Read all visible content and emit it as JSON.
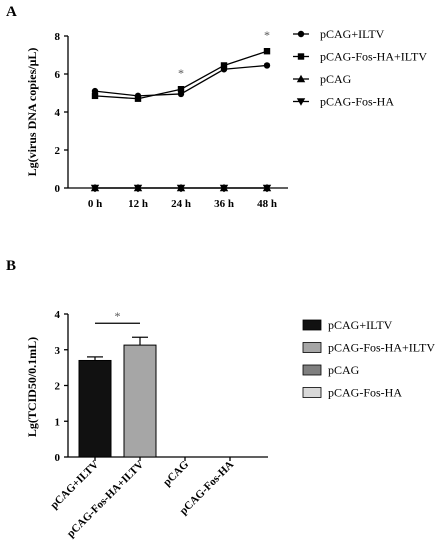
{
  "panels": {
    "a": "A",
    "b": "B"
  },
  "chart_data": [
    {
      "type": "line",
      "ylabel": "Lg(virus DNA copies/μL)",
      "xlabel": "",
      "categories": [
        "0 h",
        "12 h",
        "24 h",
        "36 h",
        "48 h"
      ],
      "ylim": [
        0,
        8
      ],
      "yticks": [
        "0",
        "2",
        "4",
        "6",
        "8"
      ],
      "series": [
        {
          "name": "pCAG+ILTV",
          "marker": "circle",
          "values": [
            5.1,
            4.85,
            4.95,
            6.25,
            6.45
          ]
        },
        {
          "name": "pCAG-Fos-HA+ILTV",
          "marker": "square",
          "values": [
            4.85,
            4.7,
            5.2,
            6.45,
            7.2
          ]
        },
        {
          "name": "pCAG",
          "marker": "triangle-up",
          "values": [
            0,
            0,
            0,
            0,
            0
          ]
        },
        {
          "name": "pCAG-Fos-HA",
          "marker": "triangle-down",
          "values": [
            0,
            0,
            0,
            0,
            0
          ]
        }
      ],
      "annotations": [
        {
          "text": "*",
          "category": "24 h"
        },
        {
          "text": "*",
          "category": "48 h"
        }
      ],
      "legend": "right",
      "grid": false
    },
    {
      "type": "bar",
      "ylabel": "Lg(TCID50/0.1mL)",
      "xlabel": "",
      "categories": [
        "pCAG+ILTV",
        "pCAG-Fos-HA+ILTV",
        "pCAG",
        "pCAG-Fos-HA"
      ],
      "values": [
        2.7,
        3.13,
        0,
        0
      ],
      "errors": [
        0.1,
        0.22,
        0,
        0
      ],
      "colors": [
        "#111111",
        "#a6a6a6",
        "#7f7f7f",
        "#d9d9d9"
      ],
      "ylim": [
        0,
        4
      ],
      "yticks": [
        "0",
        "1",
        "2",
        "3",
        "4"
      ],
      "significance": {
        "text": "*",
        "from": "pCAG+ILTV",
        "to": "pCAG-Fos-HA+ILTV"
      },
      "legend": "right",
      "grid": false
    }
  ]
}
